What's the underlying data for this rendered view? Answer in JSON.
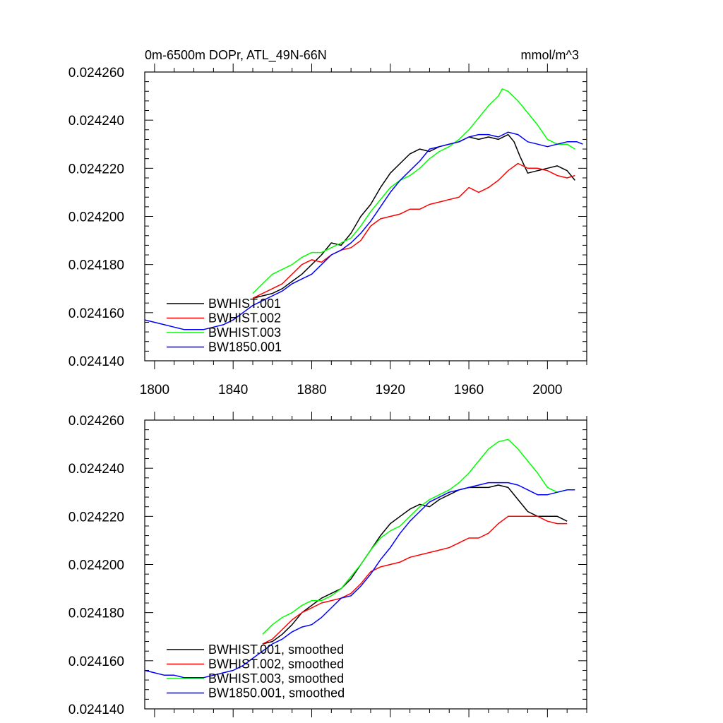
{
  "chart_data": [
    {
      "type": "line",
      "title_left": "0m-6500m DOPr, ATL_49N-66N",
      "title_right": "mmol/m^3",
      "xlim": [
        1795,
        2020
      ],
      "ylim": [
        0.02414,
        0.02426
      ],
      "xticks": [
        1800,
        1840,
        1880,
        1920,
        1960,
        2000
      ],
      "xtick_labels": [
        "1800",
        "1840",
        "1880",
        "1920",
        "1960",
        "2000"
      ],
      "yticks": [
        0.02414,
        0.02416,
        0.02418,
        0.0242,
        0.02422,
        0.02424,
        0.02426
      ],
      "ytick_labels": [
        "0.024140",
        "0.024160",
        "0.024180",
        "0.024200",
        "0.024220",
        "0.024240",
        "0.024260"
      ],
      "legend_position": "bottom-left",
      "series": [
        {
          "name": "BWHIST.001",
          "color": "#000000",
          "x": [
            1850,
            1855,
            1860,
            1865,
            1870,
            1875,
            1880,
            1885,
            1890,
            1895,
            1900,
            1905,
            1910,
            1915,
            1920,
            1925,
            1930,
            1935,
            1940,
            1945,
            1950,
            1955,
            1960,
            1965,
            1970,
            1975,
            1980,
            1983,
            1986,
            1990,
            1995,
            2000,
            2005,
            2010,
            2014
          ],
          "y": [
            0.024166,
            0.024167,
            0.024168,
            0.02417,
            0.024173,
            0.024176,
            0.02418,
            0.024184,
            0.024189,
            0.024188,
            0.024193,
            0.0242,
            0.024205,
            0.024212,
            0.024218,
            0.024222,
            0.024226,
            0.024228,
            0.024227,
            0.024229,
            0.02423,
            0.024231,
            0.024233,
            0.024232,
            0.024233,
            0.024232,
            0.024234,
            0.024231,
            0.024225,
            0.024218,
            0.024219,
            0.02422,
            0.024221,
            0.024219,
            0.024215
          ]
        },
        {
          "name": "BWHIST.002",
          "color": "#ff0000",
          "x": [
            1850,
            1855,
            1860,
            1865,
            1870,
            1875,
            1880,
            1885,
            1890,
            1895,
            1900,
            1905,
            1910,
            1915,
            1920,
            1925,
            1930,
            1935,
            1940,
            1945,
            1950,
            1955,
            1960,
            1965,
            1970,
            1975,
            1980,
            1985,
            1990,
            1995,
            2000,
            2005,
            2010,
            2014
          ],
          "y": [
            0.024166,
            0.024168,
            0.02417,
            0.024172,
            0.024176,
            0.02418,
            0.024182,
            0.024181,
            0.024184,
            0.024186,
            0.024187,
            0.02419,
            0.024196,
            0.024199,
            0.0242,
            0.024201,
            0.024203,
            0.024203,
            0.024205,
            0.024206,
            0.024207,
            0.024208,
            0.024212,
            0.02421,
            0.024212,
            0.024215,
            0.024219,
            0.024222,
            0.02422,
            0.02422,
            0.024219,
            0.024217,
            0.024216,
            0.024217
          ]
        },
        {
          "name": "BWHIST.003",
          "color": "#00ff00",
          "x": [
            1850,
            1855,
            1860,
            1865,
            1870,
            1875,
            1880,
            1885,
            1890,
            1895,
            1900,
            1905,
            1910,
            1915,
            1920,
            1925,
            1930,
            1935,
            1940,
            1945,
            1950,
            1955,
            1960,
            1965,
            1970,
            1975,
            1977,
            1980,
            1985,
            1990,
            1995,
            2000,
            2005,
            2010,
            2014
          ],
          "y": [
            0.024168,
            0.024172,
            0.024176,
            0.024178,
            0.02418,
            0.024183,
            0.024185,
            0.024185,
            0.024187,
            0.024189,
            0.024191,
            0.024196,
            0.024202,
            0.024207,
            0.024212,
            0.024215,
            0.024217,
            0.02422,
            0.024224,
            0.024227,
            0.024229,
            0.024232,
            0.024236,
            0.024241,
            0.024246,
            0.02425,
            0.024253,
            0.024252,
            0.024248,
            0.024243,
            0.024238,
            0.024232,
            0.02423,
            0.02423,
            0.024228
          ]
        },
        {
          "name": "BW1850.001",
          "color": "#0000ff",
          "x": [
            1795,
            1800,
            1805,
            1810,
            1815,
            1820,
            1825,
            1830,
            1835,
            1840,
            1845,
            1850,
            1855,
            1860,
            1865,
            1870,
            1875,
            1880,
            1885,
            1890,
            1895,
            1900,
            1905,
            1910,
            1915,
            1920,
            1925,
            1930,
            1935,
            1940,
            1945,
            1950,
            1955,
            1960,
            1965,
            1970,
            1975,
            1980,
            1985,
            1990,
            1995,
            2000,
            2005,
            2010,
            2015,
            2018
          ],
          "y": [
            0.024157,
            0.024156,
            0.024155,
            0.024154,
            0.024153,
            0.024153,
            0.024153,
            0.024154,
            0.024155,
            0.024157,
            0.02416,
            0.024163,
            0.024165,
            0.024167,
            0.024169,
            0.024172,
            0.024174,
            0.024176,
            0.02418,
            0.024184,
            0.024186,
            0.024189,
            0.024193,
            0.024198,
            0.024204,
            0.02421,
            0.024215,
            0.024219,
            0.024223,
            0.024228,
            0.024229,
            0.02423,
            0.024231,
            0.024233,
            0.024234,
            0.024234,
            0.024233,
            0.024235,
            0.024234,
            0.024231,
            0.02423,
            0.024229,
            0.02423,
            0.024231,
            0.024231,
            0.02423
          ]
        }
      ]
    },
    {
      "type": "line",
      "xlim": [
        1795,
        2020
      ],
      "ylim": [
        0.02414,
        0.02426
      ],
      "xticks": [
        1800,
        1840,
        1880,
        1920,
        1960,
        2000
      ],
      "yticks": [
        0.02414,
        0.02416,
        0.02418,
        0.0242,
        0.02422,
        0.02424,
        0.02426
      ],
      "ytick_labels": [
        "0.024140",
        "0.024160",
        "0.024180",
        "0.024200",
        "0.024220",
        "0.024240",
        "0.024260"
      ],
      "legend_position": "bottom-left",
      "series": [
        {
          "name": "BWHIST.001, smoothed",
          "color": "#000000",
          "x": [
            1855,
            1860,
            1865,
            1870,
            1875,
            1880,
            1885,
            1890,
            1895,
            1900,
            1905,
            1910,
            1915,
            1920,
            1925,
            1930,
            1935,
            1940,
            1945,
            1950,
            1955,
            1960,
            1965,
            1970,
            1975,
            1980,
            1985,
            1990,
            1995,
            2000,
            2005,
            2010
          ],
          "y": [
            0.024167,
            0.024168,
            0.024171,
            0.024175,
            0.02418,
            0.024183,
            0.024186,
            0.024188,
            0.02419,
            0.024194,
            0.0242,
            0.024206,
            0.024212,
            0.024217,
            0.02422,
            0.024223,
            0.024225,
            0.024224,
            0.024227,
            0.024229,
            0.024231,
            0.024232,
            0.024232,
            0.024232,
            0.024233,
            0.024232,
            0.024227,
            0.024222,
            0.02422,
            0.02422,
            0.02422,
            0.024218
          ]
        },
        {
          "name": "BWHIST.002, smoothed",
          "color": "#ff0000",
          "x": [
            1855,
            1860,
            1865,
            1870,
            1875,
            1880,
            1885,
            1890,
            1895,
            1900,
            1905,
            1910,
            1915,
            1920,
            1925,
            1930,
            1935,
            1940,
            1945,
            1950,
            1955,
            1960,
            1965,
            1970,
            1975,
            1980,
            1985,
            1990,
            1995,
            2000,
            2005,
            2010
          ],
          "y": [
            0.024167,
            0.024169,
            0.024173,
            0.024177,
            0.02418,
            0.024182,
            0.024184,
            0.024185,
            0.024186,
            0.024188,
            0.024192,
            0.024197,
            0.024199,
            0.0242,
            0.024201,
            0.024203,
            0.024204,
            0.024205,
            0.024206,
            0.024207,
            0.024209,
            0.024211,
            0.024211,
            0.024213,
            0.024217,
            0.02422,
            0.02422,
            0.02422,
            0.02422,
            0.024218,
            0.024217,
            0.024217
          ]
        },
        {
          "name": "BWHIST.003, smoothed",
          "color": "#00ff00",
          "x": [
            1855,
            1860,
            1865,
            1870,
            1875,
            1880,
            1885,
            1890,
            1895,
            1900,
            1905,
            1910,
            1915,
            1920,
            1925,
            1930,
            1935,
            1940,
            1945,
            1950,
            1955,
            1960,
            1965,
            1970,
            1975,
            1980,
            1985,
            1990,
            1995,
            2000,
            2005,
            2010
          ],
          "y": [
            0.024171,
            0.024175,
            0.024178,
            0.02418,
            0.024183,
            0.024185,
            0.024185,
            0.024187,
            0.02419,
            0.024195,
            0.0242,
            0.024206,
            0.024211,
            0.024214,
            0.024216,
            0.02422,
            0.024224,
            0.024227,
            0.024229,
            0.024231,
            0.024234,
            0.024238,
            0.024243,
            0.024248,
            0.024251,
            0.024252,
            0.024248,
            0.024243,
            0.024238,
            0.024232,
            0.02423,
            0.024231
          ]
        },
        {
          "name": "BW1850.001, smoothed",
          "color": "#0000ff",
          "x": [
            1795,
            1800,
            1805,
            1810,
            1815,
            1820,
            1825,
            1830,
            1835,
            1840,
            1845,
            1850,
            1855,
            1860,
            1865,
            1870,
            1875,
            1880,
            1885,
            1890,
            1895,
            1900,
            1905,
            1910,
            1915,
            1920,
            1925,
            1930,
            1935,
            1940,
            1945,
            1950,
            1955,
            1960,
            1965,
            1970,
            1975,
            1980,
            1985,
            1990,
            1995,
            2000,
            2005,
            2010,
            2014
          ],
          "y": [
            0.024156,
            0.024155,
            0.024154,
            0.024154,
            0.024153,
            0.024153,
            0.024153,
            0.024154,
            0.024155,
            0.024156,
            0.024158,
            0.024161,
            0.024164,
            0.024167,
            0.024169,
            0.024172,
            0.024174,
            0.024175,
            0.024178,
            0.024182,
            0.024186,
            0.024187,
            0.024191,
            0.024196,
            0.024202,
            0.024207,
            0.024213,
            0.024218,
            0.024222,
            0.024226,
            0.024228,
            0.02423,
            0.024231,
            0.024232,
            0.024233,
            0.024234,
            0.024234,
            0.024234,
            0.024233,
            0.024231,
            0.024229,
            0.024229,
            0.02423,
            0.024231,
            0.024231
          ]
        }
      ]
    }
  ]
}
